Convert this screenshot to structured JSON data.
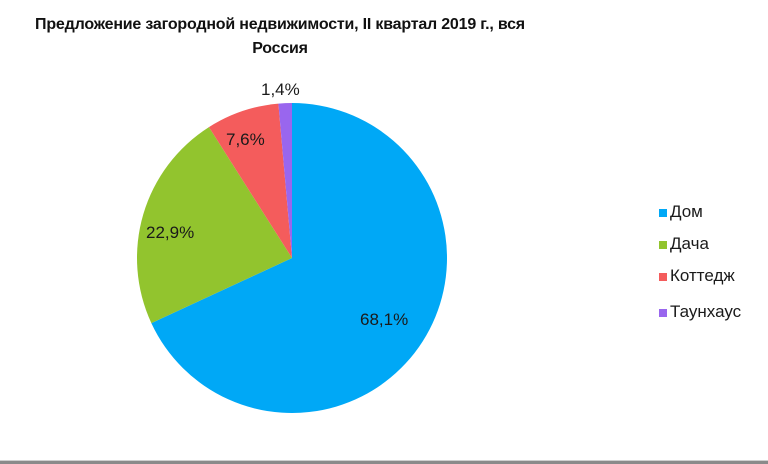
{
  "chart_data": {
    "type": "pie",
    "title": "Предложение загородной недвижимости, II квартал 2019 г., вся Россия",
    "title_lines": [
      "Предложение загородной недвижимости, II квартал 2019 г., вся",
      "Россия"
    ],
    "categories": [
      "Дом",
      "Дача",
      "Коттедж",
      "Таунхаус"
    ],
    "values": [
      68.1,
      22.9,
      7.6,
      1.4
    ],
    "labels": [
      "68,1%",
      "22,9%",
      "7,6%",
      "1,4%"
    ],
    "colors": [
      "#00a8f6",
      "#92c42e",
      "#f45c5c",
      "#9966ee"
    ],
    "legend_position": "right",
    "unit": "%"
  }
}
